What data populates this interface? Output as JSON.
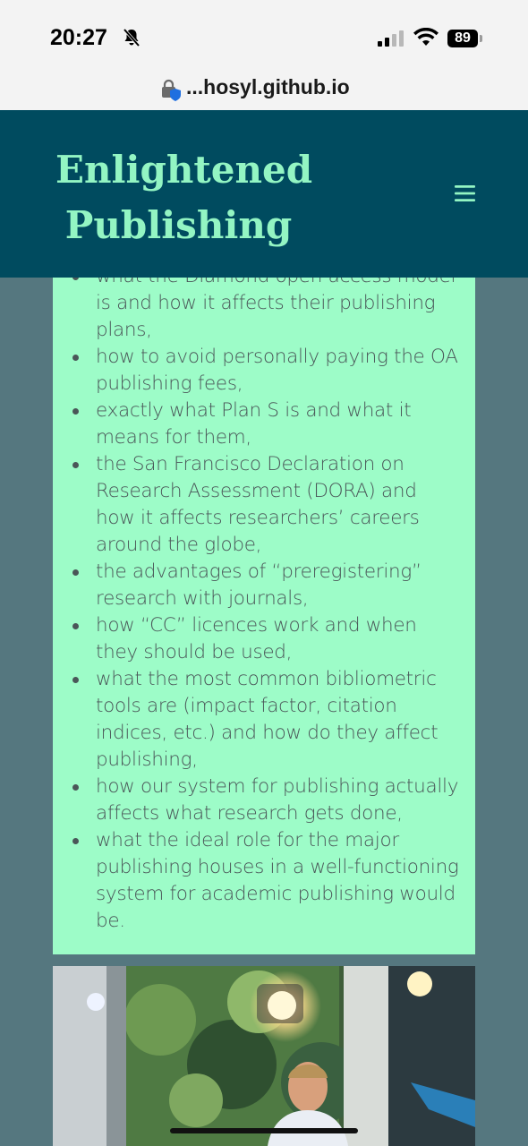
{
  "status": {
    "time": "20:27",
    "battery": "89",
    "icons": [
      "bell-muted-icon",
      "signal-icon",
      "wifi-icon",
      "battery-icon"
    ]
  },
  "browser": {
    "url": "...hosyl.github.io",
    "icon": "lock-shield-icon"
  },
  "header": {
    "title": "Enlightened Publishing",
    "menu_icon": "hamburger-menu-icon",
    "colors": {
      "background": "#004b5f",
      "title": "#93f5c3"
    }
  },
  "content": {
    "items": [
      {
        "text": "what the Diamond open access model is and how it affects their publishing plans,"
      },
      {
        "text": "how to avoid personally paying the OA publishing fees,"
      },
      {
        "text": "exactly what Plan S is and what it means for them,"
      },
      {
        "text": "the San Francisco Declaration on Research Assessment (DORA) and how it affects researchers’ careers around the globe,"
      },
      {
        "text": "the advantages of “preregistering” research with journals,"
      },
      {
        "text": "how “CC” licences work and when they should be used,"
      },
      {
        "text": "what the most common bibliometric tools are (impact factor, citation indices, etc.) and how do they affect publishing,"
      },
      {
        "text": "how our system for publishing actually affects what research gets done,"
      },
      {
        "text": "what the ideal role for the major publishing houses in a well-functioning system for academic publishing would be."
      }
    ],
    "colors": {
      "card": "#9dfcc8",
      "text": "#4a5658",
      "page": "#55777f"
    }
  }
}
